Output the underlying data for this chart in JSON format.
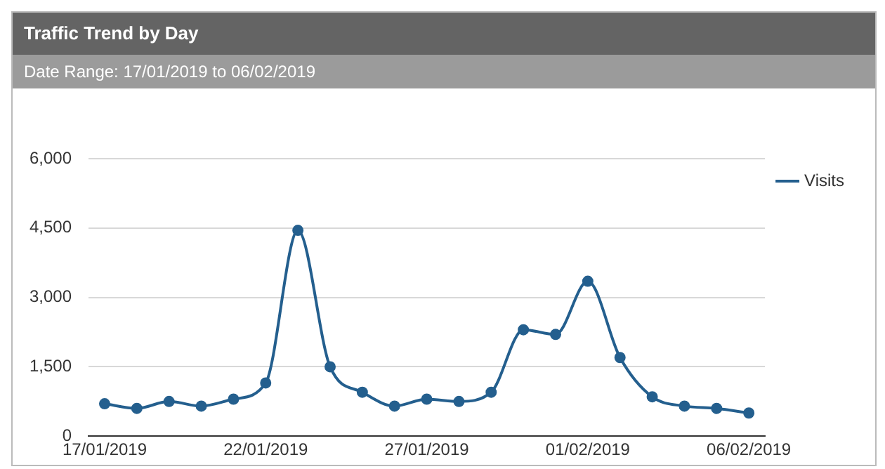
{
  "chart_data": {
    "type": "line",
    "title": "Traffic Trend by Day",
    "subtitle": "Date Range: 17/01/2019 to 06/02/2019",
    "categories": [
      "17/01/2019",
      null,
      null,
      null,
      null,
      "22/01/2019",
      null,
      null,
      null,
      null,
      "27/01/2019",
      null,
      null,
      null,
      null,
      "01/02/2019",
      null,
      null,
      null,
      null,
      "06/02/2019"
    ],
    "series": [
      {
        "name": "Visits",
        "color": "#245f8e",
        "values": [
          700,
          600,
          750,
          650,
          800,
          1150,
          4450,
          1500,
          950,
          650,
          800,
          750,
          950,
          2300,
          2200,
          3350,
          1700,
          850,
          650,
          600,
          500
        ]
      }
    ],
    "ylim": [
      0,
      6000
    ],
    "yticks": [
      0,
      {
        "value": 1500,
        "label": "1,500"
      },
      {
        "value": 3000,
        "label": "3,000"
      },
      {
        "value": 4500,
        "label": "4,500"
      },
      {
        "value": 6000,
        "label": "6,000"
      }
    ],
    "grid": "y",
    "legend": "top right",
    "marker": "circle",
    "line_style": "solid"
  }
}
